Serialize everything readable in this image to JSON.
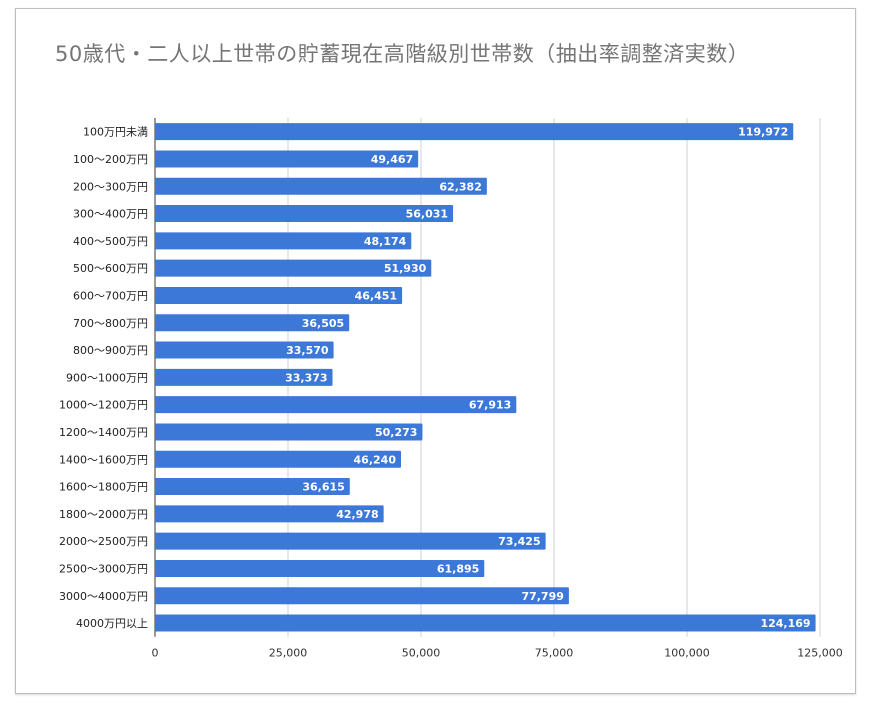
{
  "chart_data": {
    "type": "bar",
    "orientation": "horizontal",
    "title": "50歳代・二人以上世帯の貯蓄現在高階級別世帯数（抽出率調整済実数）",
    "categories": [
      "100万円未満",
      "100〜200万円",
      "200〜300万円",
      "300〜400万円",
      "400〜500万円",
      "500〜600万円",
      "600〜700万円",
      "700〜800万円",
      "800〜900万円",
      "900〜1000万円",
      "1000〜1200万円",
      "1200〜1400万円",
      "1400〜1600万円",
      "1600〜1800万円",
      "1800〜2000万円",
      "2000〜2500万円",
      "2500〜3000万円",
      "3000〜4000万円",
      "4000万円以上"
    ],
    "values": [
      119972,
      49467,
      62382,
      56031,
      48174,
      51930,
      46451,
      36505,
      33570,
      33373,
      67913,
      50273,
      46240,
      36615,
      42978,
      73425,
      61895,
      77799,
      124169
    ],
    "data_labels": [
      "119,972",
      "49,467",
      "62,382",
      "56,031",
      "48,174",
      "51,930",
      "46,451",
      "36,505",
      "33,570",
      "33,373",
      "67,913",
      "50,273",
      "46,240",
      "36,615",
      "42,978",
      "73,425",
      "61,895",
      "77,799",
      "124,169"
    ],
    "xlim": [
      0,
      125000
    ],
    "x_ticks": [
      "0",
      "25,000",
      "50,000",
      "75,000",
      "100,000",
      "125,000"
    ],
    "grid": "vertical",
    "bar_color": "#3c78d8",
    "legend": "none"
  }
}
